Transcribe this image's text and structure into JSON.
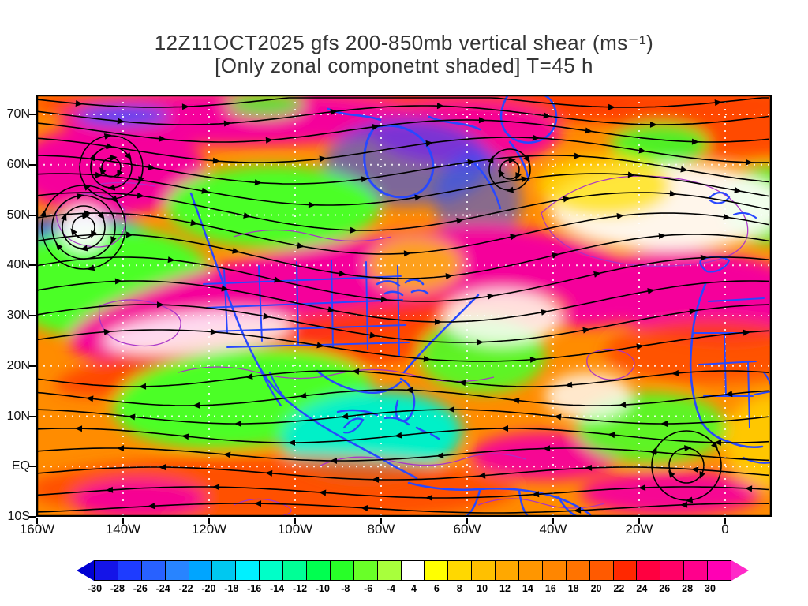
{
  "title": {
    "line1": "12Z11OCT2025 gfs 200-850mb vertical shear (ms⁻¹)",
    "line2": "[Only zonal componetnt shaded] T=45 h"
  },
  "chart_data": {
    "type": "heatmap",
    "title": "12Z11OCT2025 gfs 200-850mb vertical shear (ms⁻¹)",
    "subtitle": "[Only zonal componetnt shaded] T=45 h",
    "y_axis": {
      "ticks": [
        "70N",
        "60N",
        "50N",
        "40N",
        "30N",
        "20N",
        "10N",
        "EQ",
        "10S"
      ]
    },
    "x_axis": {
      "ticks": [
        "160W",
        "140W",
        "120W",
        "100W",
        "80W",
        "60W",
        "40W",
        "20W",
        "0"
      ]
    },
    "colorbar": {
      "boundary_labels": [
        "-30",
        "-28",
        "-26",
        "-24",
        "-22",
        "-20",
        "-18",
        "-16",
        "-14",
        "-12",
        "-10",
        "-8",
        "-6",
        "-4",
        "4",
        "6",
        "8",
        "10",
        "12",
        "14",
        "16",
        "18",
        "20",
        "22",
        "24",
        "26",
        "28",
        "30"
      ],
      "segment_colors": [
        "#1414E8",
        "#1E3CFF",
        "#2861FF",
        "#2884FF",
        "#00A5FF",
        "#00C8F0",
        "#00F0FF",
        "#00FFC8",
        "#00FF96",
        "#00FF50",
        "#28FF28",
        "#69FF28",
        "#A8FF3C",
        "#FFFFFF",
        "#FFFF00",
        "#FFD800",
        "#FFC000",
        "#FFA800",
        "#FF9600",
        "#FF8600",
        "#FF7300",
        "#FF5A00",
        "#FF2800",
        "#FF0040",
        "#FF0066",
        "#FF008C",
        "#FF00B4"
      ],
      "left_arrow_color": "#0000D2",
      "right_arrow_color": "#FF28C8"
    },
    "overlays": {
      "streamlines": "black shear streamlines with arrowheads",
      "map_outlines": "blue coastlines and state/country borders",
      "contours": "purple contour lines",
      "gridlines": "white dotted 10-deg latitude / 20-deg longitude grid"
    }
  },
  "colors": {
    "streamline": "#000000",
    "map_outline": "#2848FF",
    "contour": "#A832C8",
    "grid_dots": "#FFFFFF",
    "frame": "#000000",
    "title_text": "#353535"
  }
}
